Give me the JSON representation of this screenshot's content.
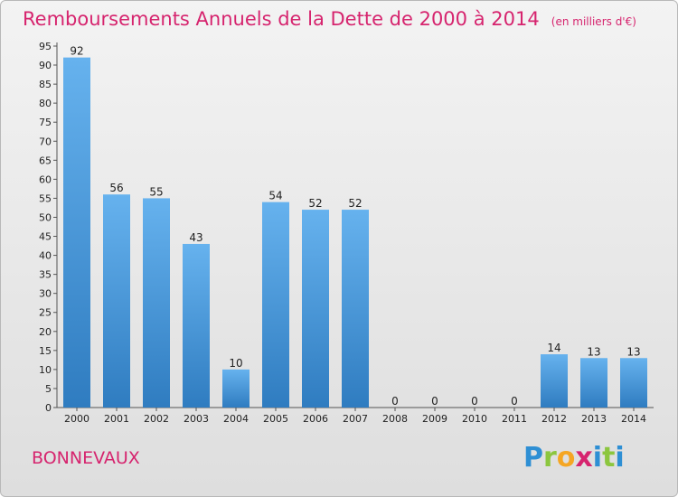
{
  "title": "Remboursements Annuels de la Dette de 2000 à 2014",
  "unit": "(en milliers d'€)",
  "commune": "BONNEVAUX",
  "logo": {
    "letters": [
      "P",
      "r",
      "o",
      "x",
      "i",
      "t",
      "i"
    ],
    "colors": [
      "#2e8fd4",
      "#8cc63f",
      "#f5a623",
      "#d6246e",
      "#2e8fd4",
      "#8cc63f",
      "#2e8fd4"
    ]
  },
  "colors": {
    "title": "#d6246e",
    "bar_top": "#66b2ee",
    "bar_bottom": "#2f7cc0"
  },
  "chart_data": {
    "type": "bar",
    "categories": [
      "2000",
      "2001",
      "2002",
      "2003",
      "2004",
      "2005",
      "2006",
      "2007",
      "2008",
      "2009",
      "2010",
      "2011",
      "2012",
      "2013",
      "2014"
    ],
    "values": [
      92,
      56,
      55,
      43,
      10,
      54,
      52,
      52,
      0,
      0,
      0,
      0,
      14,
      13,
      13
    ],
    "title": "Remboursements Annuels de la Dette de 2000 à 2014",
    "ylim": [
      0,
      95
    ],
    "yticks": [
      0,
      5,
      10,
      15,
      20,
      25,
      30,
      35,
      40,
      45,
      50,
      55,
      60,
      65,
      70,
      75,
      80,
      85,
      90,
      95
    ],
    "grid": false,
    "legend": "none"
  }
}
